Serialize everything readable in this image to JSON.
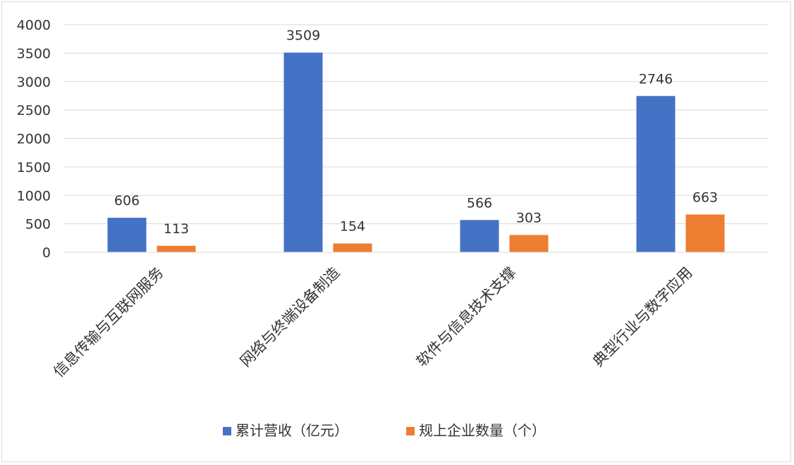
{
  "chart_data": {
    "type": "bar",
    "categories": [
      "信息传输与互联网服务",
      "网络与终端设备制造",
      "软件与信息技术支撑",
      "典型行业与数字应用"
    ],
    "series": [
      {
        "name": "累计营收（亿元）",
        "values": [
          606,
          3509,
          566,
          2746
        ],
        "color": "#4472C4"
      },
      {
        "name": "规上企业数量（个）",
        "values": [
          113,
          154,
          303,
          663
        ],
        "color": "#ED7D31"
      }
    ],
    "y_ticks": [
      "0",
      "500",
      "1000",
      "1500",
      "2000",
      "2500",
      "3000",
      "3500",
      "4000"
    ],
    "ylim": [
      0,
      4000
    ],
    "grid": true,
    "legend": "bottom",
    "title": "",
    "xlabel": "",
    "ylabel": ""
  }
}
